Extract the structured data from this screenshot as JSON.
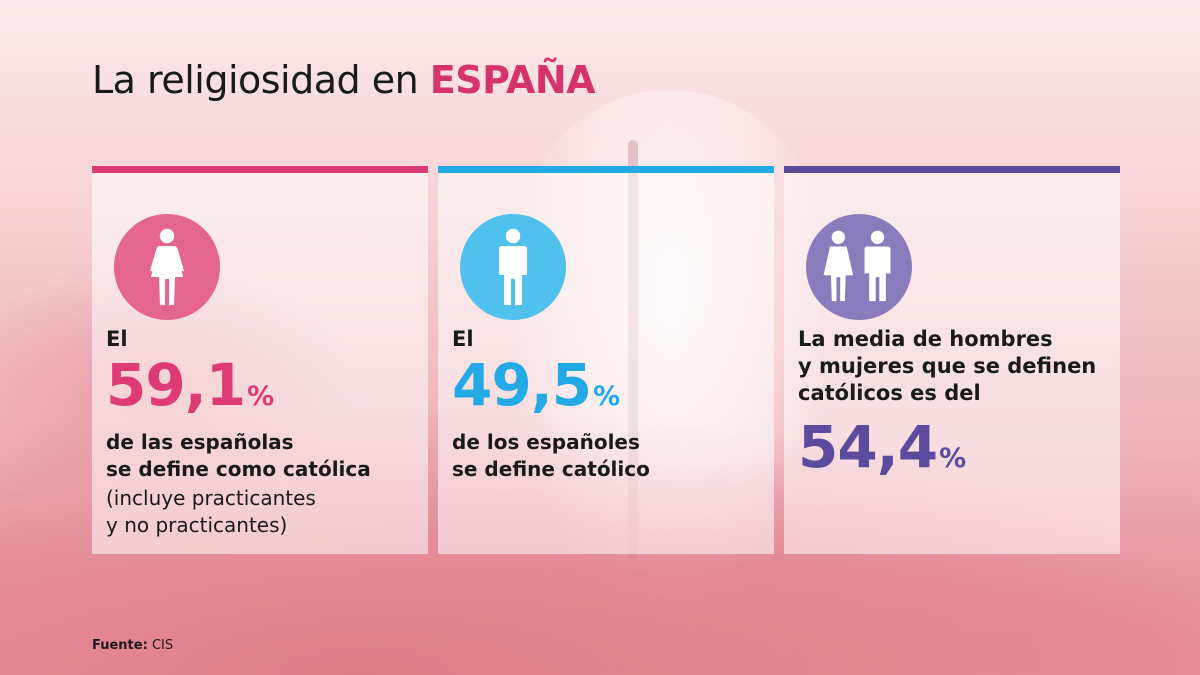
{
  "title": {
    "text": "La religiosidad en ",
    "highlight": "ESPAÑA"
  },
  "colors": {
    "women": "#de3a76",
    "men": "#22a9e6",
    "average": "#5b4a9e",
    "women_circle": "#e4668f",
    "men_circle": "#4fc1ec",
    "average_circle": "#8a7cbc"
  },
  "cards": [
    {
      "icon": "woman-icon",
      "lead": "El",
      "value": "59,1",
      "unit": "%",
      "desc": "de las españolas\nse define como católica",
      "note": "(incluye practicantes\ny no practicantes)"
    },
    {
      "icon": "man-icon",
      "lead": "El",
      "value": "49,5",
      "unit": "%",
      "desc": "de los españoles\nse define católico",
      "note": ""
    },
    {
      "icon": "woman-and-man-icon",
      "lead": "La media de hombres\ny mujeres que se definen\ncatólicos es del",
      "value": "54,4",
      "unit": "%",
      "desc": "",
      "note": ""
    }
  ],
  "source": {
    "label": "Fuente:",
    "value": "CIS"
  },
  "chart_data": {
    "type": "table",
    "title": "La religiosidad en ESPAÑA",
    "categories": [
      "de las españolas se define como católica",
      "de los españoles se define católico",
      "La media de hombres y mujeres que se definen católicos es del"
    ],
    "values": [
      59.1,
      49.5,
      54.4
    ],
    "unit": "%"
  }
}
